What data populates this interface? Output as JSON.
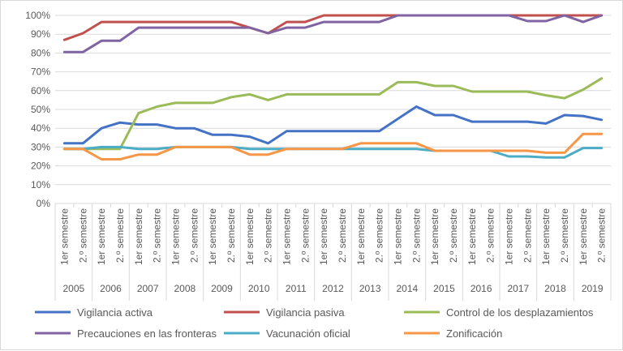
{
  "chart_data": {
    "type": "line",
    "title": "",
    "xlabel": "",
    "ylabel": "",
    "ylim": [
      0,
      100
    ],
    "yunit": "%",
    "y_ticks": [
      "0%",
      "10%",
      "20%",
      "30%",
      "40%",
      "50%",
      "60%",
      "70%",
      "80%",
      "90%",
      "100%"
    ],
    "years": [
      "2005",
      "2006",
      "2007",
      "2008",
      "2009",
      "2010",
      "2011",
      "2012",
      "2013",
      "2014",
      "2015",
      "2016",
      "2017",
      "2018",
      "2019"
    ],
    "semesters": [
      "1er semestre",
      "2.º semestre"
    ],
    "grid": true,
    "legend_position": "bottom",
    "series": [
      {
        "name": "Vigilancia activa",
        "color": "#4472C4",
        "values": [
          32,
          32,
          40,
          43,
          42,
          42,
          40,
          40,
          36.5,
          36.5,
          35.5,
          32,
          38.5,
          38.5,
          38.5,
          38.5,
          38.5,
          38.5,
          45,
          51.5,
          47,
          47,
          43.5,
          43.5,
          43.5,
          43.5,
          42.5,
          47,
          46.5,
          44.5
        ]
      },
      {
        "name": "Vigilancia pasiva",
        "color": "#C0504D",
        "values": [
          87,
          90.5,
          96.5,
          96.5,
          96.5,
          96.5,
          96.5,
          96.5,
          96.5,
          96.5,
          93.5,
          90.5,
          96.5,
          96.5,
          100,
          100,
          100,
          100,
          100,
          100,
          100,
          100,
          100,
          100,
          100,
          100,
          100,
          100,
          100,
          100
        ]
      },
      {
        "name": "Control de los desplazamientos",
        "color": "#9BBB59",
        "values": [
          29,
          29,
          29,
          29,
          48,
          51.5,
          53.5,
          53.5,
          53.5,
          56.5,
          58,
          55,
          58,
          58,
          58,
          58,
          58,
          58,
          64.5,
          64.5,
          62.5,
          62.5,
          59.5,
          59.5,
          59.5,
          59.5,
          57.5,
          56,
          60.5,
          66.5
        ]
      },
      {
        "name": "Precauciones en las fronteras",
        "color": "#8064A2",
        "values": [
          80.5,
          80.5,
          86.5,
          86.5,
          93.5,
          93.5,
          93.5,
          93.5,
          93.5,
          93.5,
          93.5,
          90.5,
          93.5,
          93.5,
          96.5,
          96.5,
          96.5,
          96.5,
          100,
          100,
          100,
          100,
          100,
          100,
          100,
          97,
          97,
          100,
          96.5,
          100
        ]
      },
      {
        "name": "Vacunación oficial",
        "color": "#4BACC6",
        "values": [
          29,
          29,
          30,
          30,
          29,
          29,
          30,
          30,
          30,
          30,
          29,
          29,
          29,
          29,
          29,
          29,
          29,
          29,
          29,
          29,
          28,
          28,
          28,
          28,
          25,
          25,
          24.5,
          24.5,
          29.5,
          29.5
        ]
      },
      {
        "name": "Zonificación",
        "color": "#F79646",
        "values": [
          29,
          29,
          23.5,
          23.5,
          26,
          26,
          30,
          30,
          30,
          30,
          26,
          26,
          29,
          29,
          29,
          29,
          32,
          32,
          32,
          32,
          28,
          28,
          28,
          28,
          28,
          28,
          27,
          27,
          37,
          37
        ]
      }
    ]
  }
}
